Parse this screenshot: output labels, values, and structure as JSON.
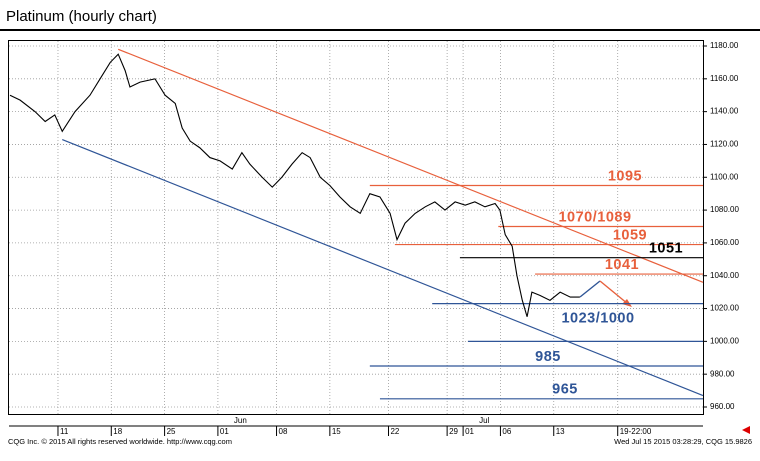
{
  "chart_data": {
    "type": "line",
    "title": "Platinum (hourly chart)",
    "footer_left": "CQG Inc. © 2015 All rights reserved worldwide. http://www.cqg.com",
    "footer_right": "Wed Jul 15 2015 03:28:29, CQG 15.9826",
    "xlim": [
      0,
      130
    ],
    "ylim": [
      960,
      1180
    ],
    "grid": true,
    "yticks": [
      {
        "value": 960,
        "label": "960.00"
      },
      {
        "value": 980,
        "label": "980.00"
      },
      {
        "value": 1000,
        "label": "1000.00"
      },
      {
        "value": 1020,
        "label": "1020.00"
      },
      {
        "value": 1040,
        "label": "1040.00"
      },
      {
        "value": 1060,
        "label": "1060.00"
      },
      {
        "value": 1080,
        "label": "1080.00"
      },
      {
        "value": 1100,
        "label": "1100.00"
      },
      {
        "value": 1120,
        "label": "1120.00"
      },
      {
        "value": 1140,
        "label": "1140.00"
      },
      {
        "value": 1160,
        "label": "1160.00"
      },
      {
        "value": 1180,
        "label": "1180.00"
      }
    ],
    "xticks": [
      {
        "value": 9,
        "label": "11"
      },
      {
        "value": 19,
        "label": "18"
      },
      {
        "value": 29,
        "label": "25"
      },
      {
        "value": 39,
        "label": "01"
      },
      {
        "value": 50,
        "label": "08"
      },
      {
        "value": 60,
        "label": "15"
      },
      {
        "value": 71,
        "label": "22"
      },
      {
        "value": 82,
        "label": "29"
      },
      {
        "value": 85,
        "label": "01"
      },
      {
        "value": 92,
        "label": "06"
      },
      {
        "value": 102,
        "label": "13"
      },
      {
        "value": 114,
        "label": "19-22:00"
      }
    ],
    "month_labels": [
      {
        "value": 42,
        "label": "Jun"
      },
      {
        "value": 88,
        "label": "Jul"
      }
    ],
    "series": [
      {
        "name": "Platinum",
        "color": "#000000",
        "x": [
          0,
          1.9,
          4.7,
          6.6,
          8.4,
          9.8,
          12.2,
          15,
          16.9,
          18.8,
          20.3,
          21.6,
          22.5,
          24.4,
          27.2,
          29.1,
          31,
          32.3,
          33.8,
          35.6,
          37.5,
          39.4,
          41.7,
          43.5,
          45,
          47.3,
          49.2,
          51,
          52.9,
          54.8,
          56.3,
          58.2,
          60,
          61.9,
          63.8,
          65.7,
          67.5,
          69.4,
          71.3,
          72.6,
          74.1,
          76,
          77.9,
          79.7,
          81.6,
          83.5,
          85.4,
          87.2,
          89.1,
          91,
          91.9,
          92.9,
          94.2,
          95.1,
          96.1,
          97,
          97.9,
          99.4,
          101.3,
          103.2,
          105.1,
          106.9
        ],
        "values": [
          1150,
          1147,
          1140,
          1134,
          1138,
          1128,
          1140,
          1150,
          1160,
          1170,
          1175,
          1165,
          1155,
          1158,
          1160,
          1150,
          1145,
          1130,
          1122,
          1118,
          1112,
          1110,
          1105,
          1115,
          1108,
          1100,
          1094,
          1100,
          1108,
          1115,
          1112,
          1100,
          1095,
          1088,
          1082,
          1078,
          1090,
          1088,
          1078,
          1062,
          1072,
          1078,
          1082,
          1085,
          1080,
          1085,
          1083,
          1085,
          1082,
          1084,
          1080,
          1065,
          1058,
          1040,
          1025,
          1015,
          1030,
          1028,
          1025,
          1030,
          1027,
          1027
        ]
      }
    ],
    "trendlines": [
      {
        "color": "#e8603c",
        "x": [
          20.3,
          130
        ],
        "y": [
          1178,
          1036
        ]
      },
      {
        "color": "#2f5597",
        "x": [
          9.8,
          130
        ],
        "y": [
          1123,
          967
        ]
      }
    ],
    "levels": [
      {
        "label": "1095",
        "value": 1095,
        "start": 67.5,
        "color": "#e8603c"
      },
      {
        "label": "1070/1089",
        "value": 1070,
        "start": 91.6,
        "color": "#e8603c"
      },
      {
        "label": "1059",
        "value": 1059,
        "start": 72.2,
        "color": "#e8603c"
      },
      {
        "label": "1051",
        "value": 1051,
        "start": 84.4,
        "color": "#000000"
      },
      {
        "label": "1041",
        "value": 1041,
        "start": 98.5,
        "color": "#e8603c"
      },
      {
        "label": "1023/1000",
        "value": 1023,
        "start": 79.2,
        "color": "#2f5597"
      },
      {
        "label": "1000",
        "value": 1000,
        "start": 85.9,
        "color": "#2f5597"
      },
      {
        "label": "985",
        "value": 985,
        "start": 67.5,
        "color": "#2f5597"
      },
      {
        "label": "965",
        "value": 965,
        "start": 69.4,
        "color": "#2f5597"
      }
    ]
  }
}
